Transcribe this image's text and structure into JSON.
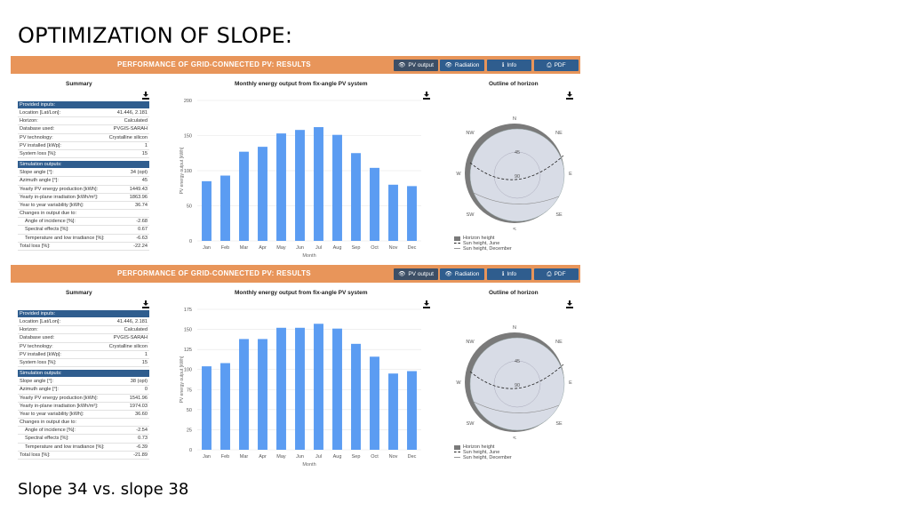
{
  "slide": {
    "title": "OPTIMIZATION OF SLOPE:",
    "caption": "Slope 34 vs. slope 38"
  },
  "colors": {
    "header": "#e8955a",
    "button": "#2f5d8e",
    "bar": "#5b9cf2",
    "summary_head": "#2f5d8e"
  },
  "panels": [
    {
      "header_title": "PERFORMANCE OF GRID-CONNECTED PV: RESULTS",
      "buttons": [
        {
          "label": "PV output",
          "icon": "eye-icon",
          "glyph": "👁"
        },
        {
          "label": "Radiation",
          "icon": "eye-icon",
          "glyph": "👁"
        },
        {
          "label": "Info",
          "icon": "info-icon",
          "glyph": "ℹ"
        },
        {
          "label": "PDF",
          "icon": "printer-icon",
          "glyph": "⎙"
        }
      ],
      "summary": {
        "title": "Summary",
        "inputs_title": "Provided inputs:",
        "inputs": [
          {
            "label": "Location [Lat/Lon]:",
            "value": "41.446, 2.181"
          },
          {
            "label": "Horizon:",
            "value": "Calculated"
          },
          {
            "label": "Database used:",
            "value": "PVGIS-SARAH"
          },
          {
            "label": "PV technology:",
            "value": "Crystalline silicon"
          },
          {
            "label": "PV installed [kWp]:",
            "value": "1"
          },
          {
            "label": "System loss [%]:",
            "value": "15"
          }
        ],
        "outputs_title": "Simulation outputs:",
        "outputs": [
          {
            "label": "Slope angle [°]:",
            "value": "34 (opt)"
          },
          {
            "label": "Azimuth angle [°]:",
            "value": "45"
          },
          {
            "label": "Yearly PV energy production [kWh]:",
            "value": "1449.43"
          },
          {
            "label": "Yearly in-plane irradiation [kWh/m²]:",
            "value": "1863.96"
          },
          {
            "label": "Year to year variability [kWh]:",
            "value": "36.74"
          },
          {
            "label": "Changes in output due to:",
            "value": ""
          },
          {
            "label": "Angle of incidence [%]:",
            "value": "-2.68",
            "indent": true
          },
          {
            "label": "Spectral effects [%]:",
            "value": "0.67",
            "indent": true
          },
          {
            "label": "Temperature and low irradiance [%]:",
            "value": "-6.63",
            "indent": true
          },
          {
            "label": "Total loss [%]:",
            "value": "-22.24"
          }
        ]
      },
      "chart_title": "Monthly energy output from fix-angle PV system",
      "horizon_title": "Outline of horizon",
      "horizon_labels": {
        "n": "N",
        "ne": "NE",
        "e": "E",
        "se": "SE",
        "s": "S",
        "sw": "SW",
        "w": "W",
        "nw": "NW",
        "c45": "45",
        "c90": "90"
      },
      "horizon_legend": [
        "Horizon height",
        "Sun height, June",
        "Sun height, December"
      ],
      "chart_data": {
        "type": "bar",
        "title": "",
        "xlabel": "Month",
        "ylabel": "PV energy output [kWh]",
        "ylim": [
          0,
          200
        ],
        "yticks": [
          0,
          50,
          100,
          150,
          200
        ],
        "categories": [
          "Jan",
          "Feb",
          "Mar",
          "Apr",
          "May",
          "Jun",
          "Jul",
          "Aug",
          "Sep",
          "Oct",
          "Nov",
          "Dec"
        ],
        "values": [
          85,
          93,
          127,
          134,
          153,
          158,
          162,
          151,
          125,
          104,
          80,
          78
        ],
        "grid": true
      }
    },
    {
      "header_title": "PERFORMANCE OF GRID-CONNECTED PV: RESULTS",
      "buttons": [
        {
          "label": "PV output",
          "icon": "eye-icon",
          "glyph": "👁"
        },
        {
          "label": "Radiation",
          "icon": "eye-icon",
          "glyph": "👁"
        },
        {
          "label": "Info",
          "icon": "info-icon",
          "glyph": "ℹ"
        },
        {
          "label": "PDF",
          "icon": "printer-icon",
          "glyph": "⎙"
        }
      ],
      "summary": {
        "title": "Summary",
        "inputs_title": "Provided inputs:",
        "inputs": [
          {
            "label": "Location [Lat/Lon]:",
            "value": "41.446, 2.181"
          },
          {
            "label": "Horizon:",
            "value": "Calculated"
          },
          {
            "label": "Database used:",
            "value": "PVGIS-SARAH"
          },
          {
            "label": "PV technology:",
            "value": "Crystalline silicon"
          },
          {
            "label": "PV installed [kWp]:",
            "value": "1"
          },
          {
            "label": "System loss [%]:",
            "value": "15"
          }
        ],
        "outputs_title": "Simulation outputs:",
        "outputs": [
          {
            "label": "Slope angle [°]:",
            "value": "38 (opt)"
          },
          {
            "label": "Azimuth angle [°]:",
            "value": "0"
          },
          {
            "label": "Yearly PV energy production [kWh]:",
            "value": "1541.96"
          },
          {
            "label": "Yearly in-plane irradiation [kWh/m²]:",
            "value": "1974.03"
          },
          {
            "label": "Year to year variability [kWh]:",
            "value": "36.60"
          },
          {
            "label": "Changes in output due to:",
            "value": ""
          },
          {
            "label": "Angle of incidence [%]:",
            "value": "-2.54",
            "indent": true
          },
          {
            "label": "Spectral effects [%]:",
            "value": "0.73",
            "indent": true
          },
          {
            "label": "Temperature and low irradiance [%]:",
            "value": "-6.39",
            "indent": true
          },
          {
            "label": "Total loss [%]:",
            "value": "-21.89"
          }
        ]
      },
      "chart_title": "Monthly energy output from fix-angle PV system",
      "horizon_title": "Outline of horizon",
      "horizon_labels": {
        "n": "N",
        "ne": "NE",
        "e": "E",
        "se": "SE",
        "s": "S",
        "sw": "SW",
        "w": "W",
        "nw": "NW",
        "c45": "45",
        "c90": "90"
      },
      "horizon_legend": [
        "Horizon height",
        "Sun height, June",
        "Sun height, December"
      ],
      "chart_data": {
        "type": "bar",
        "title": "",
        "xlabel": "Month",
        "ylabel": "PV energy output [kWh]",
        "ylim": [
          0,
          175
        ],
        "yticks": [
          0,
          25,
          50,
          75,
          100,
          125,
          150,
          175
        ],
        "categories": [
          "Jan",
          "Feb",
          "Mar",
          "Apr",
          "May",
          "Jun",
          "Jul",
          "Aug",
          "Sep",
          "Oct",
          "Nov",
          "Dec"
        ],
        "values": [
          104,
          108,
          138,
          138,
          152,
          152,
          157,
          151,
          132,
          116,
          95,
          98
        ],
        "grid": true
      }
    }
  ]
}
